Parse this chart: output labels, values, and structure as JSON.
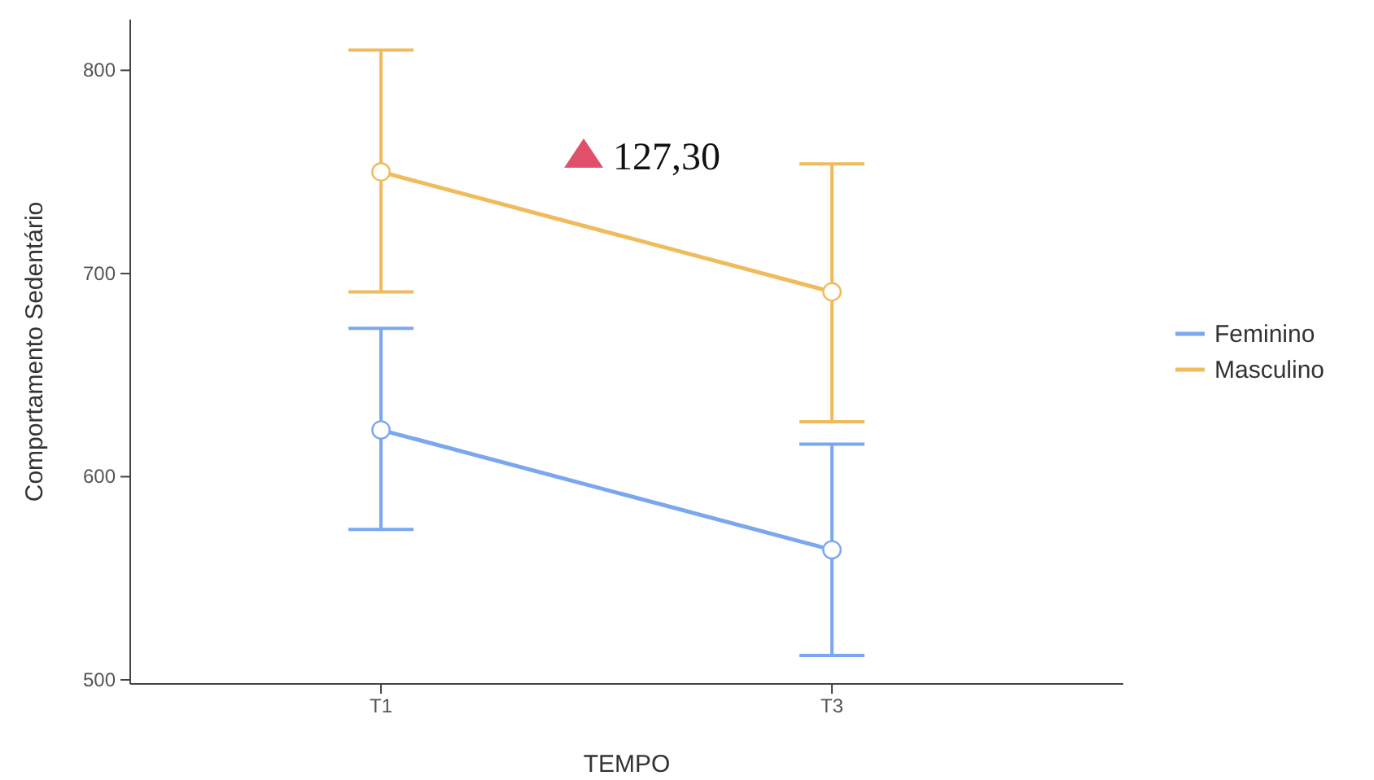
{
  "chart_data": {
    "type": "line",
    "xlabel": "TEMPO",
    "ylabel": "Comportamento Sedentário",
    "categories": [
      "T1",
      "T3"
    ],
    "series": [
      {
        "name": "Feminino",
        "color": "#7ba7f0",
        "values": [
          623,
          564
        ],
        "errors": [
          [
            574,
            673
          ],
          [
            512,
            616
          ]
        ]
      },
      {
        "name": "Masculino",
        "color": "#f0bb5c",
        "values": [
          750,
          691
        ],
        "errors": [
          [
            691,
            810
          ],
          [
            627,
            754
          ]
        ]
      }
    ],
    "ylim": [
      498,
      825
    ],
    "yticks": [
      500,
      600,
      700,
      800
    ],
    "grid": false,
    "legend": "right",
    "marker": "circle",
    "line_style": "solid",
    "annotations": [
      "127,30"
    ]
  }
}
